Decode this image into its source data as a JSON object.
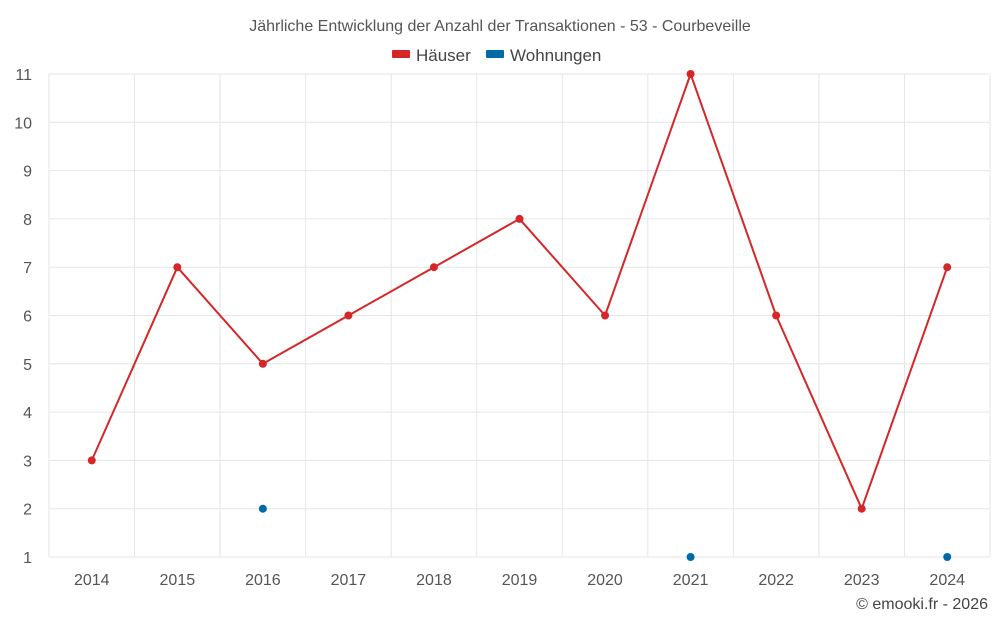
{
  "chart_data": {
    "type": "line",
    "title": "Jährliche Entwicklung der Anzahl der Transaktionen - 53 - Courbeveille",
    "categories": [
      "2014",
      "2015",
      "2016",
      "2017",
      "2018",
      "2019",
      "2020",
      "2021",
      "2022",
      "2023",
      "2024"
    ],
    "series": [
      {
        "name": "Häuser",
        "color": "#d62728",
        "values": [
          3,
          7,
          5,
          6,
          7,
          8,
          6,
          11,
          6,
          2,
          7
        ]
      },
      {
        "name": "Wohnungen",
        "color": "#006aa8",
        "values": [
          null,
          null,
          2,
          null,
          null,
          null,
          null,
          1,
          null,
          null,
          1
        ]
      }
    ],
    "ylim": [
      1,
      11
    ],
    "yticks": [
      1,
      2,
      3,
      4,
      5,
      6,
      7,
      8,
      9,
      10,
      11
    ],
    "grid": true,
    "legend_position": "top-center"
  },
  "credit": "© emooki.fr - 2026"
}
